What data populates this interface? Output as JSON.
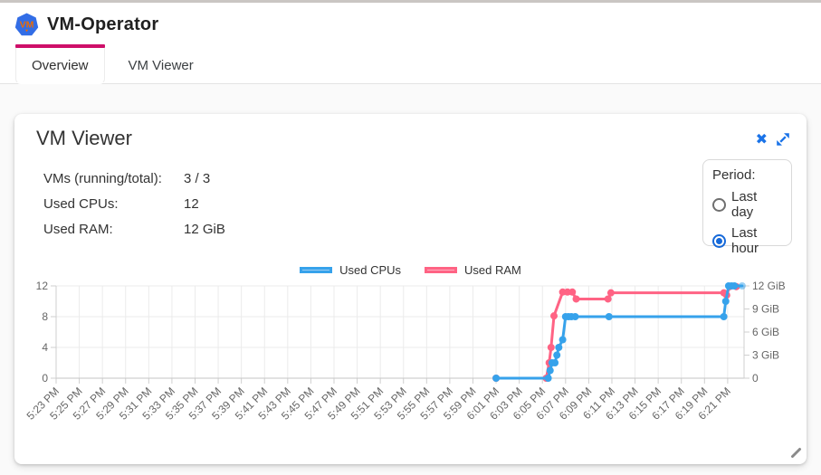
{
  "header": {
    "title": "VM-Operator",
    "logo_text": "VM"
  },
  "tabs": [
    {
      "label": "Overview",
      "active": true
    },
    {
      "label": "VM Viewer",
      "active": false
    }
  ],
  "card": {
    "title": "VM Viewer",
    "stats": [
      {
        "label": "VMs (running/total):",
        "value": "3 / 3"
      },
      {
        "label": "Used CPUs:",
        "value": "12"
      },
      {
        "label": "Used RAM:",
        "value": "12 GiB"
      }
    ],
    "period": {
      "label": "Period:",
      "options": [
        {
          "label": "Last day",
          "selected": false
        },
        {
          "label": "Last hour",
          "selected": true
        }
      ]
    }
  },
  "colors": {
    "tab_accent": "#ce0f69",
    "icon_blue": "#1a73e8",
    "cpu_line": "#36a2eb",
    "cpu_fill": "#9ccef3",
    "ram_line": "#ff6384",
    "ram_fill": "#ffafc0",
    "grid": "#ebebeb",
    "axis_border": "#cfcfcf",
    "tick_text": "#666666"
  },
  "chart_data": {
    "type": "line",
    "title": "",
    "legend_position": "top",
    "x_axis": {
      "domain_start": "5:23:00 PM",
      "domain_end": "6:22:25 PM",
      "tick_interval_minutes": 2,
      "ticks": [
        "5:23 PM",
        "5:25 PM",
        "5:27 PM",
        "5:29 PM",
        "5:31 PM",
        "5:33 PM",
        "5:35 PM",
        "5:37 PM",
        "5:39 PM",
        "5:41 PM",
        "5:43 PM",
        "5:45 PM",
        "5:47 PM",
        "5:49 PM",
        "5:51 PM",
        "5:53 PM",
        "5:55 PM",
        "5:57 PM",
        "5:59 PM",
        "6:01 PM",
        "6:03 PM",
        "6:05 PM",
        "6:07 PM",
        "6:09 PM",
        "6:11 PM",
        "6:13 PM",
        "6:15 PM",
        "6:17 PM",
        "6:19 PM",
        "6:21 PM"
      ]
    },
    "y_left": {
      "label": "Used CPUs",
      "min": 0,
      "max": 12,
      "ticks": [
        0,
        4,
        8,
        12
      ]
    },
    "y_right": {
      "label": "Used RAM",
      "min": 0,
      "max": 12,
      "ticks": [
        {
          "v": 0,
          "label": "0"
        },
        {
          "v": 3,
          "label": "3 GiB"
        },
        {
          "v": 6,
          "label": "6 GiB"
        },
        {
          "v": 9,
          "label": "9 GiB"
        },
        {
          "v": 12,
          "label": "12 GiB"
        }
      ]
    },
    "series": [
      {
        "name": "Used CPUs",
        "axis": "left",
        "color": "#36a2eb",
        "fill": "#9ccef3",
        "fade_last": true,
        "points": [
          [
            "6:01:00 PM",
            0
          ],
          [
            "6:05:30 PM",
            0
          ],
          [
            "6:05:40 PM",
            1
          ],
          [
            "6:05:50 PM",
            2
          ],
          [
            "6:06:05 PM",
            2
          ],
          [
            "6:06:15 PM",
            3
          ],
          [
            "6:06:25 PM",
            4
          ],
          [
            "6:06:45 PM",
            5
          ],
          [
            "6:07:00 PM",
            8
          ],
          [
            "6:07:15 PM",
            8
          ],
          [
            "6:07:30 PM",
            8
          ],
          [
            "6:07:50 PM",
            8
          ],
          [
            "6:10:45 PM",
            8
          ],
          [
            "6:20:40 PM",
            8
          ],
          [
            "6:20:50 PM",
            10
          ],
          [
            "6:21:05 PM",
            12
          ],
          [
            "6:21:20 PM",
            12
          ],
          [
            "6:21:35 PM",
            12
          ],
          [
            "6:22:15 PM",
            12
          ]
        ]
      },
      {
        "name": "Used RAM",
        "axis": "right",
        "color": "#ff6384",
        "fill": "#ffafc0",
        "fade_last": false,
        "points": [
          [
            "6:01:00 PM",
            0
          ],
          [
            "6:05:20 PM",
            0
          ],
          [
            "6:05:35 PM",
            2
          ],
          [
            "6:05:45 PM",
            4
          ],
          [
            "6:06:00 PM",
            8.1
          ],
          [
            "6:06:45 PM",
            11.2
          ],
          [
            "6:07:10 PM",
            11.2
          ],
          [
            "6:07:35 PM",
            11.2
          ],
          [
            "6:07:55 PM",
            10.3
          ],
          [
            "6:10:40 PM",
            10.3
          ],
          [
            "6:10:55 PM",
            11.1
          ],
          [
            "6:20:40 PM",
            11.1
          ],
          [
            "6:20:55 PM",
            10.8
          ],
          [
            "6:21:10 PM",
            11.9
          ],
          [
            "6:21:45 PM",
            11.9
          ]
        ]
      }
    ]
  }
}
